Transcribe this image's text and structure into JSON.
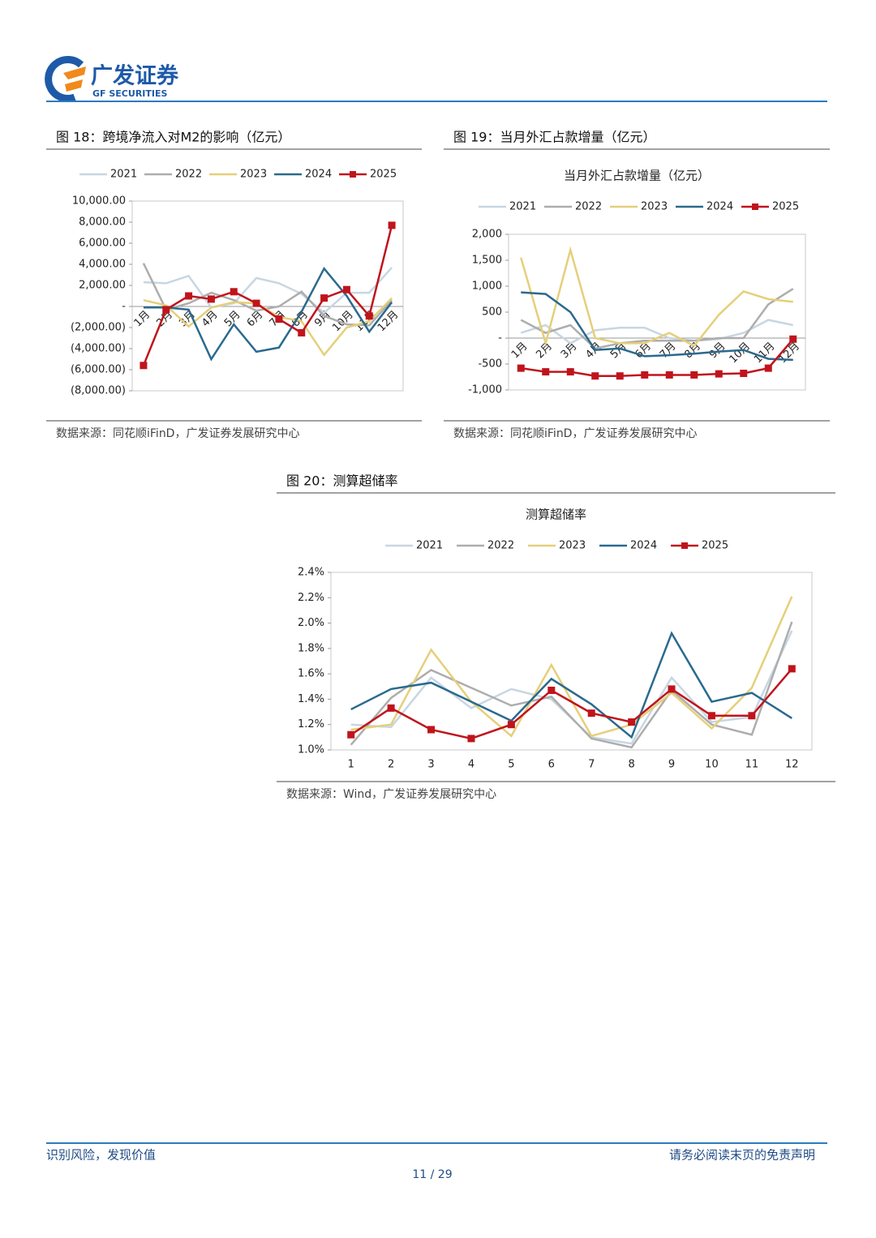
{
  "header": {
    "logo_cn": "广发证券",
    "logo_en": "GF SECURITIES"
  },
  "chart_data": [
    {
      "type": "line",
      "caption": "图 18：跨境净流入对M2的影响（亿元）",
      "source": "数据来源：同花顺iFinD，广发证券发展研究中心",
      "categories": [
        "1月",
        "2月",
        "3月",
        "4月",
        "5月",
        "6月",
        "7月",
        "8月",
        "9月",
        "10月",
        "11月",
        "12月"
      ],
      "ylim": [
        -8000,
        10000
      ],
      "yticks": [
        {
          "value": 10000,
          "label": "10,000.00"
        },
        {
          "value": 8000,
          "label": "8,000.00"
        },
        {
          "value": 6000,
          "label": "6,000.00"
        },
        {
          "value": 4000,
          "label": "4,000.00"
        },
        {
          "value": 2000,
          "label": "2,000.00"
        },
        {
          "value": 0,
          "label": "-"
        },
        {
          "value": -2000,
          "label": "(2,000.00)"
        },
        {
          "value": -4000,
          "label": "(4,000.00)"
        },
        {
          "value": -6000,
          "label": "(6,000.00)"
        },
        {
          "value": -8000,
          "label": "(8,000.00)"
        }
      ],
      "grid": false,
      "legend": "top",
      "series": [
        {
          "name": "2021",
          "color": "#c8d6e2",
          "values": [
            2300,
            2200,
            2900,
            -100,
            300,
            2700,
            2200,
            1200,
            -600,
            1300,
            1300,
            3700
          ]
        },
        {
          "name": "2022",
          "color": "#adadad",
          "values": [
            4100,
            -300,
            300,
            1300,
            600,
            -400,
            0,
            1400,
            -900,
            -1700,
            -1800,
            600
          ]
        },
        {
          "name": "2023",
          "color": "#e5cf7a",
          "values": [
            600,
            100,
            -1900,
            -100,
            400,
            300,
            -1000,
            -1400,
            -4600,
            -2000,
            -1400,
            800
          ]
        },
        {
          "name": "2024",
          "color": "#2a6a8e",
          "values": [
            -100,
            -100,
            -300,
            -5000,
            -1700,
            -4300,
            -3900,
            -500,
            3600,
            1000,
            -2400,
            400
          ]
        },
        {
          "name": "2025",
          "color": "#c0141c",
          "marker": "square",
          "values": [
            -5600,
            -300,
            1000,
            700,
            1400,
            300,
            -1200,
            -2500,
            800,
            1600,
            -900,
            7700
          ]
        }
      ]
    },
    {
      "type": "line",
      "caption": "图 19：当月外汇占款增量（亿元）",
      "title": "当月外汇占款增量（亿元）",
      "source": "数据来源：同花顺iFinD，广发证券发展研究中心",
      "categories": [
        "1月",
        "2月",
        "3月",
        "4月",
        "5月",
        "6月",
        "7月",
        "8月",
        "9月",
        "10月",
        "11月",
        "12月"
      ],
      "ylim": [
        -1000,
        2000
      ],
      "yticks": [
        {
          "value": 2000,
          "label": "2,000"
        },
        {
          "value": 1500,
          "label": "1,500"
        },
        {
          "value": 1000,
          "label": "1,000"
        },
        500,
        {
          "value": 0,
          "label": "-"
        },
        -500,
        {
          "value": -1000,
          "label": "-1,000"
        }
      ],
      "grid": false,
      "legend": "top",
      "series": [
        {
          "name": "2021",
          "color": "#c8d6e2",
          "values": [
            100,
            250,
            -100,
            150,
            200,
            200,
            0,
            -50,
            -20,
            100,
            350,
            250
          ]
        },
        {
          "name": "2022",
          "color": "#adadad",
          "values": [
            350,
            100,
            250,
            -200,
            -100,
            -50,
            -50,
            -50,
            0,
            0,
            650,
            950
          ]
        },
        {
          "name": "2023",
          "color": "#e5cf7a",
          "values": [
            1550,
            -100,
            1700,
            0,
            -100,
            -100,
            100,
            -150,
            450,
            900,
            750,
            700
          ]
        },
        {
          "name": "2024",
          "color": "#2a6a8e",
          "values": [
            880,
            850,
            500,
            -230,
            -200,
            -350,
            -330,
            -300,
            -260,
            -230,
            -400,
            -420
          ]
        },
        {
          "name": "2025",
          "color": "#c0141c",
          "marker": "square",
          "values": [
            -580,
            -650,
            -650,
            -730,
            -730,
            -710,
            -710,
            -710,
            -690,
            -680,
            -580,
            -20
          ]
        }
      ]
    },
    {
      "type": "line",
      "caption": "图 20：测算超储率",
      "title": "测算超储率",
      "source": "数据来源：Wind，广发证券发展研究中心",
      "categories": [
        "1",
        "2",
        "3",
        "4",
        "5",
        "6",
        "7",
        "8",
        "9",
        "10",
        "11",
        "12"
      ],
      "ylim": [
        1.0,
        2.4
      ],
      "yticks": [
        {
          "value": 2.4,
          "label": "2.4%"
        },
        {
          "value": 2.2,
          "label": "2.2%"
        },
        {
          "value": 2.0,
          "label": "2.0%"
        },
        {
          "value": 1.8,
          "label": "1.8%"
        },
        {
          "value": 1.6,
          "label": "1.6%"
        },
        {
          "value": 1.4,
          "label": "1.4%"
        },
        {
          "value": 1.2,
          "label": "1.2%"
        },
        {
          "value": 1.0,
          "label": "1.0%"
        }
      ],
      "grid": false,
      "legend": "top",
      "series": [
        {
          "name": "2021",
          "color": "#c8d6e2",
          "values": [
            1.2,
            1.18,
            1.57,
            1.33,
            1.48,
            1.4,
            1.1,
            1.05,
            1.57,
            1.22,
            1.26,
            1.94
          ]
        },
        {
          "name": "2022",
          "color": "#adadad",
          "values": [
            1.04,
            1.41,
            1.63,
            1.49,
            1.35,
            1.42,
            1.09,
            1.02,
            1.47,
            1.2,
            1.12,
            2.01
          ]
        },
        {
          "name": "2023",
          "color": "#e5cf7a",
          "values": [
            1.16,
            1.2,
            1.79,
            1.38,
            1.11,
            1.67,
            1.11,
            1.2,
            1.45,
            1.17,
            1.49,
            2.21
          ]
        },
        {
          "name": "2024",
          "color": "#2a6a8e",
          "values": [
            1.32,
            1.48,
            1.53,
            1.38,
            1.23,
            1.56,
            1.36,
            1.1,
            1.92,
            1.38,
            1.45,
            1.25
          ]
        },
        {
          "name": "2025",
          "color": "#c0141c",
          "marker": "square",
          "values": [
            1.12,
            1.33,
            1.16,
            1.09,
            1.2,
            1.47,
            1.29,
            1.22,
            1.48,
            1.27,
            1.27,
            1.64
          ]
        }
      ]
    }
  ],
  "footer": {
    "left": "识别风险，发现价值",
    "right": "请务必阅读末页的免责声明",
    "page": "11 / 29"
  }
}
